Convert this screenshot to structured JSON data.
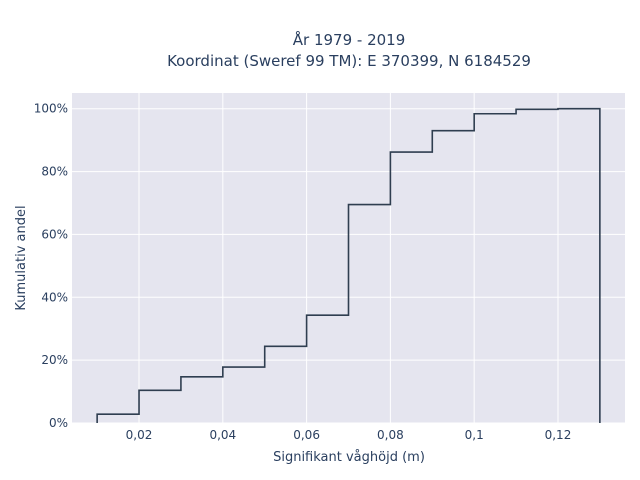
{
  "chart_data": {
    "type": "line",
    "subtype": "cumulative-step-histogram",
    "title_line1": "År 1979 - 2019",
    "title_line2": "Koordinat (Sweref 99 TM): E 370399, N 6184529",
    "xlabel": "Signifikant våghöjd (m)",
    "ylabel": "Kumulativ andel",
    "xlim": [
      0.004,
      0.136
    ],
    "ylim": [
      0,
      1.05
    ],
    "x_ticks": [
      0.02,
      0.04,
      0.06,
      0.08,
      0.1,
      0.12
    ],
    "x_tick_labels": [
      "0,02",
      "0,04",
      "0,06",
      "0,08",
      "0,1",
      "0,12"
    ],
    "y_ticks": [
      0,
      0.2,
      0.4,
      0.6,
      0.8,
      1.0
    ],
    "y_tick_labels": [
      "0%",
      "20%",
      "40%",
      "60%",
      "80%",
      "100%"
    ],
    "grid": true,
    "bin_edges": [
      0.01,
      0.02,
      0.03,
      0.04,
      0.05,
      0.06,
      0.07,
      0.08,
      0.09,
      0.1,
      0.11,
      0.12,
      0.13
    ],
    "values": [
      0.028,
      0.104,
      0.147,
      0.178,
      0.244,
      0.343,
      0.695,
      0.862,
      0.93,
      0.984,
      0.998,
      1.0
    ],
    "colors": {
      "line": "#2f3e50",
      "plot_bg": "#e5e5ef",
      "grid": "#ffffff"
    }
  }
}
